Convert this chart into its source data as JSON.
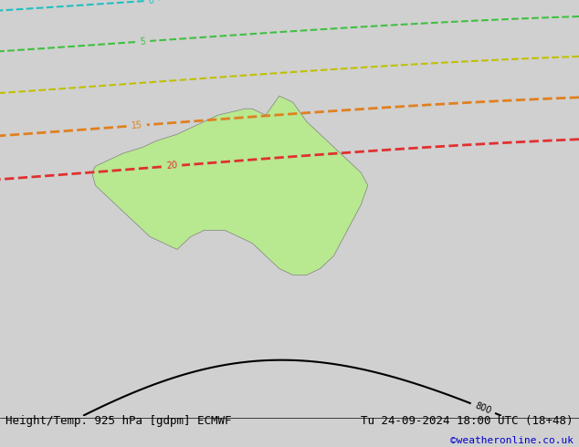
{
  "title_left": "Height/Temp. 925 hPa [gdpm] ECMWF",
  "title_right": "Tu 24-09-2024 18:00 UTC (18+48)",
  "credit": "©weatheronline.co.uk",
  "bg_color": "#d0d0d0",
  "land_color": "#c8c8c8",
  "australia_fill": "#b8e890",
  "ocean_color": "#d8d8d8",
  "fig_width": 6.34,
  "fig_height": 4.9,
  "dpi": 100,
  "title_fontsize": 9,
  "credit_fontsize": 8,
  "contour_colors": {
    "black": "#000000",
    "red": "#e03030",
    "orange": "#e08020",
    "yellow_green": "#90c030",
    "green": "#40c040",
    "cyan": "#20c0c0",
    "magenta": "#e020e0"
  },
  "lon_range": [
    100,
    185
  ],
  "lat_range": [
    -60,
    5
  ]
}
